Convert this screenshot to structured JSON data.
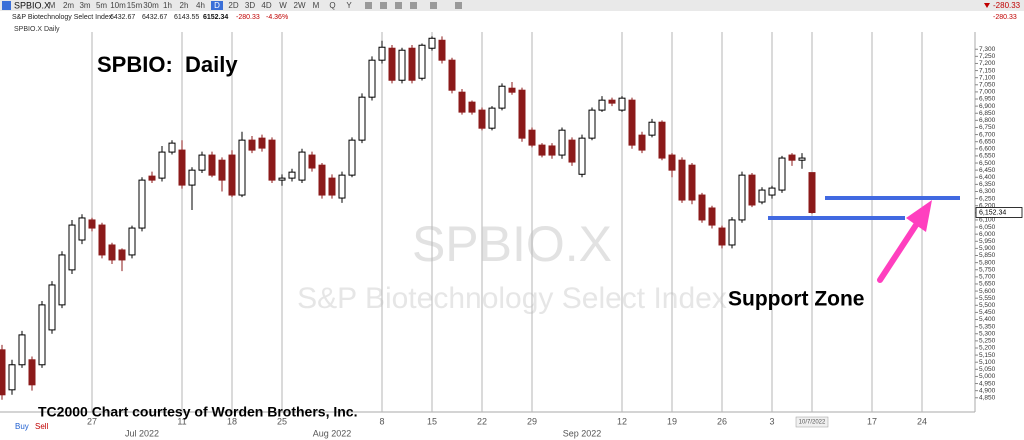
{
  "toolbar": {
    "symbol": "SPBIO.X",
    "timeframes": [
      "M",
      "2m",
      "3m",
      "5m",
      "10m",
      "15m",
      "30m",
      "1h",
      "2h",
      "4h",
      "D",
      "2D",
      "3D",
      "4D",
      "W",
      "2W",
      "M",
      "Q",
      "Y"
    ],
    "active_timeframe": "D",
    "corner_change": -280.33
  },
  "quote": {
    "name": "S&P Biotechnology Select Index",
    "open": 6432.67,
    "high": 6432.67,
    "low": 6143.55,
    "last": 6152.34,
    "change": -280.33,
    "change_pct": "-4.36%"
  },
  "chart_label": "SPBIO.X Daily",
  "trade_buttons": [
    "Buy",
    "Sell"
  ],
  "chart_data": {
    "type": "candlestick",
    "title": "SPBIO:  Daily",
    "watermark": "SPBIO.X",
    "watermark_subtitle": "S&P Biotechnology Select Index",
    "annotation": "Support Zone",
    "credit": "TC2000 Chart courtesy of Worden Brothers, Inc.",
    "up_color": "#ffffff",
    "down_color": "#8b1a1a",
    "categories": [
      null,
      null,
      null,
      null,
      null,
      null,
      null,
      null,
      null,
      "27",
      null,
      null,
      null,
      null,
      null,
      null,
      null,
      null,
      "11",
      null,
      null,
      null,
      null,
      "18",
      null,
      null,
      null,
      null,
      "25",
      null,
      null,
      null,
      null,
      null,
      null,
      null,
      null,
      null,
      "8",
      null,
      null,
      null,
      null,
      "15",
      null,
      null,
      null,
      null,
      "22",
      null,
      null,
      null,
      null,
      "29",
      null,
      null,
      null,
      null,
      null,
      null,
      null,
      null,
      "12",
      null,
      null,
      null,
      null,
      "19",
      null,
      null,
      null,
      null,
      "26",
      null,
      null,
      null,
      null,
      "3",
      null,
      null,
      null,
      "10/7/2022",
      null,
      null,
      null,
      null,
      null,
      "17",
      null,
      null,
      null,
      null,
      "24",
      null,
      null,
      null,
      null,
      null
    ],
    "month_labels": [
      null,
      null,
      null,
      null,
      null,
      null,
      null,
      null,
      null,
      null,
      null,
      null,
      null,
      null,
      "Jul 2022",
      null,
      null,
      null,
      null,
      null,
      null,
      null,
      null,
      null,
      null,
      null,
      null,
      null,
      null,
      null,
      null,
      null,
      null,
      "Aug 2022",
      null,
      null,
      null,
      null,
      null,
      null,
      null,
      null,
      null,
      null,
      null,
      null,
      null,
      null,
      null,
      null,
      null,
      null,
      null,
      null,
      null,
      null,
      null,
      null,
      "Sep 2022",
      null,
      null,
      null,
      null,
      null,
      null,
      null,
      null,
      null,
      null,
      null,
      null,
      null,
      null,
      null,
      null,
      null,
      null,
      null,
      null,
      null,
      null,
      null,
      null,
      null,
      null,
      null,
      null,
      null,
      null,
      null,
      null,
      null,
      null,
      null,
      null,
      null,
      null,
      null
    ],
    "open": [
      5187,
      4906,
      5082,
      5117,
      5082,
      5327,
      5503,
      5749,
      5959,
      6100,
      6064,
      5924,
      5889,
      5854,
      6043,
      6408,
      6394,
      6577,
      6591,
      6345,
      6450,
      6556,
      6520,
      6556,
      6275,
      6661,
      6675,
      6661,
      6380,
      6394,
      6380,
      6556,
      6485,
      6394,
      6254,
      6415,
      6661,
      6963,
      7223,
      7307,
      7082,
      7307,
      7096,
      7307,
      7363,
      7223,
      6998,
      6928,
      6872,
      6745,
      6886,
      7026,
      7012,
      6731,
      6626,
      6620,
      6556,
      6661,
      6421,
      6675,
      6872,
      6942,
      6872,
      6942,
      6696,
      6696,
      6787,
      6556,
      6520,
      6485,
      6275,
      6184,
      6043,
      5924,
      6100,
      6415,
      6226,
      6275,
      6310,
      6556,
      6520,
      6432.67,
      null,
      null,
      null,
      null,
      null,
      null,
      null,
      null,
      null,
      null,
      null,
      null,
      null,
      null,
      null,
      null
    ],
    "high": [
      5222,
      5117,
      5320,
      5140,
      5530,
      5670,
      5880,
      6100,
      6140,
      6115,
      6080,
      5940,
      5900,
      6060,
      6400,
      6440,
      6620,
      6660,
      6660,
      6470,
      6580,
      6580,
      6540,
      6590,
      6720,
      6690,
      6700,
      6680,
      6420,
      6460,
      6600,
      6580,
      6500,
      6420,
      6440,
      6680,
      6990,
      7250,
      7360,
      7330,
      7310,
      7330,
      7340,
      7390,
      7390,
      7240,
      7020,
      6940,
      6890,
      6900,
      7060,
      7070,
      7030,
      6750,
      6640,
      6640,
      6750,
      6680,
      6700,
      6890,
      6970,
      6960,
      6970,
      6960,
      6720,
      6810,
      6800,
      6570,
      6540,
      6500,
      6290,
      6200,
      6060,
      6120,
      6440,
      6430,
      6330,
      6340,
      6550,
      6570,
      6570,
      6432.67,
      null,
      null,
      null,
      null,
      null,
      null,
      null,
      null,
      null,
      null,
      null,
      null,
      null,
      null,
      null,
      null
    ],
    "low": [
      4836,
      4871,
      5060,
      4900,
      5060,
      5300,
      5480,
      5720,
      5930,
      6020,
      5830,
      5790,
      5740,
      5830,
      6020,
      6360,
      6370,
      6560,
      6320,
      6170,
      6430,
      6400,
      6300,
      6260,
      6260,
      6570,
      6580,
      6360,
      6340,
      6370,
      6360,
      6440,
      6250,
      6250,
      6220,
      6400,
      6640,
      6940,
      7200,
      7060,
      7060,
      7060,
      7080,
      7290,
      7200,
      6990,
      6840,
      6840,
      6730,
      6730,
      6870,
      6980,
      6650,
      6610,
      6540,
      6530,
      6530,
      6480,
      6400,
      6660,
      6860,
      6900,
      6860,
      6600,
      6570,
      6680,
      6520,
      6400,
      6220,
      6210,
      6080,
      6040,
      5900,
      5900,
      6080,
      6190,
      6210,
      6250,
      6290,
      6480,
      6460,
      6143.55,
      null,
      null,
      null,
      null,
      null,
      null,
      null,
      null,
      null,
      null,
      null,
      null,
      null,
      null,
      null,
      null
    ],
    "close": [
      4871,
      5082,
      5292,
      4941,
      5503,
      5643,
      5854,
      6064,
      6114,
      6043,
      5854,
      5819,
      5819,
      6043,
      6380,
      6380,
      6577,
      6640,
      6345,
      6450,
      6556,
      6415,
      6380,
      6275,
      6661,
      6591,
      6605,
      6380,
      6394,
      6436,
      6577,
      6465,
      6275,
      6275,
      6415,
      6661,
      6963,
      7223,
      7314,
      7082,
      7293,
      7082,
      7328,
      7377,
      7223,
      7012,
      6858,
      6858,
      6745,
      6886,
      7040,
      6998,
      6675,
      6626,
      6556,
      6556,
      6731,
      6507,
      6675,
      6872,
      6942,
      6921,
      6956,
      6626,
      6591,
      6787,
      6535,
      6450,
      6240,
      6240,
      6100,
      6064,
      5924,
      6100,
      6415,
      6205,
      6310,
      6324,
      6535,
      6520,
      6535,
      6152.34,
      null,
      null,
      null,
      null,
      null,
      null,
      null,
      null,
      null,
      null,
      null,
      null,
      null,
      null,
      null,
      null
    ],
    "last_price": {
      "value": 6152.34,
      "label": "6,152.34"
    },
    "ylim": [
      4750,
      7400
    ],
    "yticks": [
      {
        "value": 4850,
        "label": "4,850"
      },
      {
        "value": 4900,
        "label": "4,900"
      },
      {
        "value": 4950,
        "label": "4,950"
      },
      {
        "value": 5000,
        "label": "5,000"
      },
      {
        "value": 5050,
        "label": "5,050"
      },
      {
        "value": 5100,
        "label": "5,100"
      },
      {
        "value": 5150,
        "label": "5,150"
      },
      {
        "value": 5200,
        "label": "5,200"
      },
      {
        "value": 5250,
        "label": "5,250"
      },
      {
        "value": 5300,
        "label": "5,300"
      },
      {
        "value": 5350,
        "label": "5,350"
      },
      {
        "value": 5400,
        "label": "5,400"
      },
      {
        "value": 5450,
        "label": "5,450"
      },
      {
        "value": 5500,
        "label": "5,500"
      },
      {
        "value": 5550,
        "label": "5,550"
      },
      {
        "value": 5600,
        "label": "5,600"
      },
      {
        "value": 5650,
        "label": "5,650"
      },
      {
        "value": 5700,
        "label": "5,700"
      },
      {
        "value": 5750,
        "label": "5,750"
      },
      {
        "value": 5800,
        "label": "5,800"
      },
      {
        "value": 5850,
        "label": "5,850"
      },
      {
        "value": 5900,
        "label": "5,900"
      },
      {
        "value": 5950,
        "label": "5,950"
      },
      {
        "value": 6000,
        "label": "6,000"
      },
      {
        "value": 6050,
        "label": "6,050"
      },
      {
        "value": 6100,
        "label": "6,100"
      },
      {
        "value": 6150,
        "label": "6,150"
      },
      {
        "value": 6200,
        "label": "6,200"
      },
      {
        "value": 6250,
        "label": "6,250"
      },
      {
        "value": 6300,
        "label": "6,300"
      },
      {
        "value": 6350,
        "label": "6,350"
      },
      {
        "value": 6400,
        "label": "6,400"
      },
      {
        "value": 6450,
        "label": "6,450"
      },
      {
        "value": 6500,
        "label": "6,500"
      },
      {
        "value": 6550,
        "label": "6,550"
      },
      {
        "value": 6600,
        "label": "6,600"
      },
      {
        "value": 6650,
        "label": "6,650"
      },
      {
        "value": 6700,
        "label": "6,700"
      },
      {
        "value": 6750,
        "label": "6,750"
      },
      {
        "value": 6800,
        "label": "6,800"
      },
      {
        "value": 6850,
        "label": "6,850"
      },
      {
        "value": 6900,
        "label": "6,900"
      },
      {
        "value": 6950,
        "label": "6,950"
      },
      {
        "value": 7000,
        "label": "7,000"
      },
      {
        "value": 7050,
        "label": "7,050"
      },
      {
        "value": 7100,
        "label": "7,100"
      },
      {
        "value": 7150,
        "label": "7,150"
      },
      {
        "value": 7200,
        "label": "7,200"
      },
      {
        "value": 7250,
        "label": "7,250"
      },
      {
        "value": 7300,
        "label": "7,300"
      }
    ],
    "grid": true
  }
}
